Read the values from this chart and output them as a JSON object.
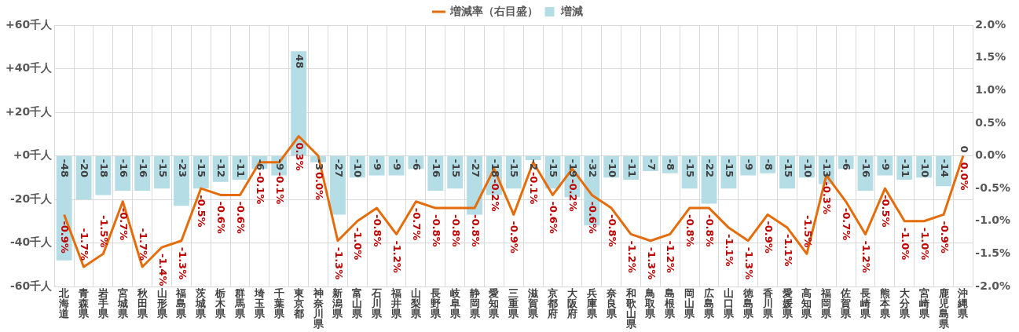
{
  "chart_data": {
    "type": "bar",
    "categories": [
      "北海道",
      "青森県",
      "岩手県",
      "宮城県",
      "秋田県",
      "山形県",
      "福島県",
      "茨城県",
      "栃木県",
      "群馬県",
      "埼玉県",
      "千葉県",
      "東京都",
      "神奈川県",
      "新潟県",
      "富山県",
      "石川県",
      "福井県",
      "山梨県",
      "長野県",
      "岐阜県",
      "静岡県",
      "愛知県",
      "三重県",
      "滋賀県",
      "京都府",
      "大阪府",
      "兵庫県",
      "奈良県",
      "和歌山県",
      "鳥取県",
      "島根県",
      "岡山県",
      "広島県",
      "山口県",
      "徳島県",
      "香川県",
      "愛媛県",
      "高知県",
      "福岡県",
      "佐賀県",
      "長崎県",
      "熊本県",
      "大分県",
      "宮崎県",
      "鹿児島県",
      "沖縄県"
    ],
    "series": [
      {
        "name": "増減",
        "color": "#b4dde6",
        "values": [
          -48,
          -20,
          -18,
          -16,
          -16,
          -15,
          -23,
          -15,
          -12,
          -11,
          -6,
          -9,
          48,
          -3,
          -27,
          -10,
          -9,
          -9,
          -6,
          -16,
          -15,
          -27,
          -18,
          -15,
          -2,
          -15,
          -19,
          -32,
          -10,
          -11,
          -7,
          -8,
          -15,
          -22,
          -15,
          -9,
          -8,
          -15,
          -10,
          -13,
          -6,
          -16,
          -9,
          -11,
          -10,
          -14,
          0
        ]
      },
      {
        "name": "増減率（右目盛）",
        "type": "line",
        "axis": "y2",
        "color": "#e46c0a",
        "values": [
          -0.9,
          -1.7,
          -1.5,
          -0.7,
          -1.7,
          -1.4,
          -1.3,
          -0.5,
          -0.6,
          -0.6,
          -0.1,
          -0.1,
          0.3,
          0.0,
          -1.3,
          -1.0,
          -0.8,
          -1.2,
          -0.7,
          -0.8,
          -0.8,
          -0.8,
          -0.2,
          -0.9,
          -0.1,
          -0.6,
          -0.2,
          -0.6,
          -0.8,
          -1.2,
          -1.3,
          -1.2,
          -0.8,
          -0.8,
          -1.1,
          -1.3,
          -0.9,
          -1.1,
          -1.5,
          -0.3,
          -0.7,
          -1.2,
          -0.5,
          -1.0,
          -1.0,
          -0.9,
          0.0
        ],
        "value_labels": [
          "-0.9%",
          "-1.7%",
          "-1.5%",
          "-0.7%",
          "-1.7%",
          "-1.4%",
          "-1.3%",
          "-0.5%",
          "-0.6%",
          "-0.6%",
          "-0.1%",
          "-0.1%",
          "0.3%",
          "0.0%",
          "-1.3%",
          "-1.0%",
          "-0.8%",
          "-1.2%",
          "-0.7%",
          "-0.8%",
          "-0.8%",
          "-0.8%",
          "-0.2%",
          "-0.9%",
          "-0.1%",
          "-0.6%",
          "-0.2%",
          "-0.6%",
          "-0.8%",
          "-1.2%",
          "-1.3%",
          "-1.2%",
          "-0.8%",
          "-0.8%",
          "-1.1%",
          "-1.3%",
          "-0.9%",
          "-1.1%",
          "-1.5%",
          "-0.3%",
          "-0.7%",
          "-1.2%",
          "-0.5%",
          "-1.0%",
          "-1.0%",
          "-0.9%",
          "0.0%"
        ]
      }
    ],
    "ylim": [
      -60,
      60
    ],
    "yticks": [
      {
        "value": 60,
        "label": "+60千人"
      },
      {
        "value": 40,
        "label": "+40千人"
      },
      {
        "value": 20,
        "label": "+20千人"
      },
      {
        "value": 0,
        "label": "+0千人"
      },
      {
        "value": -20,
        "label": "-20千人"
      },
      {
        "value": -40,
        "label": "-40千人"
      },
      {
        "value": -60,
        "label": "-60千人"
      }
    ],
    "y2lim": [
      -2.0,
      2.0
    ],
    "y2ticks": [
      {
        "value": 2.0,
        "label": "2.0%"
      },
      {
        "value": 1.5,
        "label": "1.5%"
      },
      {
        "value": 1.0,
        "label": "1.0%"
      },
      {
        "value": 0.5,
        "label": "0.5%"
      },
      {
        "value": 0,
        "label": "0.0%"
      },
      {
        "value": -0.5,
        "label": "-0.5%"
      },
      {
        "value": -1.0,
        "label": "-1.0%"
      },
      {
        "value": -1.5,
        "label": "-1.5%"
      },
      {
        "value": -2.0,
        "label": "-2.0%"
      }
    ],
    "grid": true,
    "legend": "top",
    "marker": "none",
    "line_style": "solid",
    "data_labels": true
  }
}
